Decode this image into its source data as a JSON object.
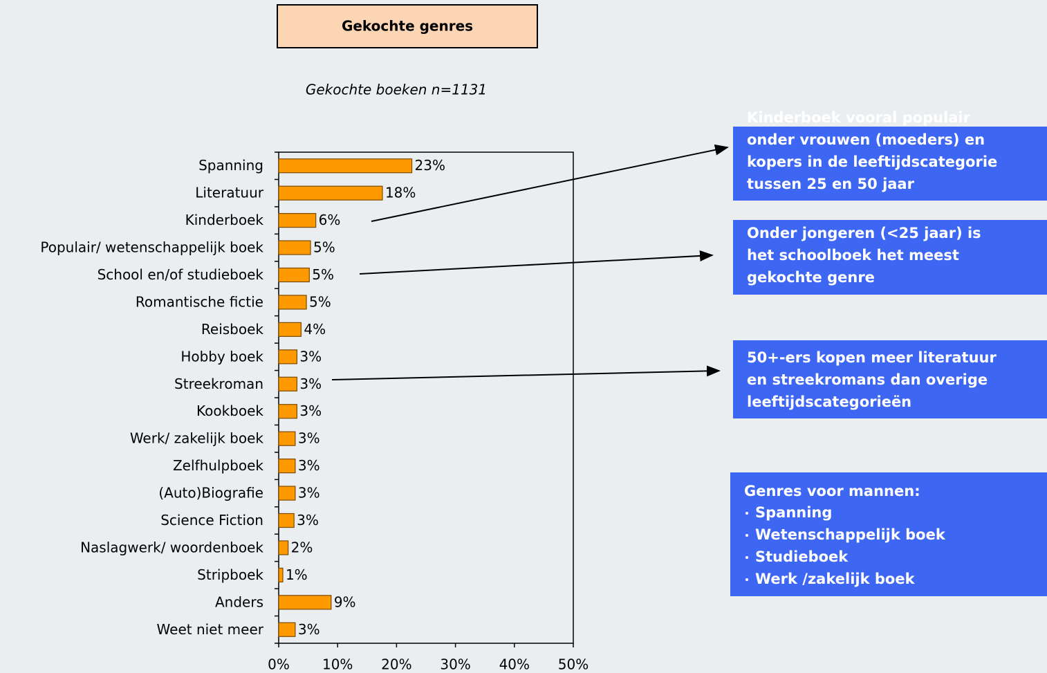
{
  "chart_data": {
    "type": "bar",
    "orientation": "horizontal",
    "title": "Gekochte genres",
    "subtitle": "Gekochte boeken n=1131",
    "categories": [
      "Spanning",
      "Literatuur",
      "Kinderboek",
      "Populair/ wetenschappelijk boek",
      "School en/of studieboek",
      "Romantische fictie",
      "Reisboek",
      "Hobby boek",
      "Streekroman",
      "Kookboek",
      "Werk/ zakelijk boek",
      "Zelfhulpboek",
      "(Auto)Biografie",
      "Science Fiction",
      "Naslagwerk/ woordenboek",
      "Stripboek",
      "Anders",
      "Weet niet meer"
    ],
    "values": [
      22.6,
      17.6,
      6.3,
      5.4,
      5.2,
      4.7,
      3.8,
      3.1,
      3.1,
      3.1,
      2.8,
      2.8,
      2.8,
      2.6,
      1.6,
      0.7,
      8.9,
      2.8
    ],
    "value_labels": [
      "23%",
      "18%",
      "6%",
      "5%",
      "5%",
      "5%",
      "4%",
      "3%",
      "3%",
      "3%",
      "3%",
      "3%",
      "3%",
      "3%",
      "2%",
      "1%",
      "9%",
      "3%"
    ],
    "color": "#ff9900",
    "xlim": [
      0,
      50
    ],
    "xticks": [
      {
        "value": 0,
        "label": "0%"
      },
      {
        "value": 10,
        "label": "10%"
      },
      {
        "value": 20,
        "label": "20%"
      },
      {
        "value": 30,
        "label": "30%"
      },
      {
        "value": 40,
        "label": "40%"
      },
      {
        "value": 50,
        "label": "50%"
      }
    ]
  },
  "callouts": [
    {
      "lines": [
        "Kinderboek vooral populair",
        "onder vrouwen (moeders) en",
        "kopers in de leeftijdscategorie",
        "tussen 25 en 50 jaar"
      ]
    },
    {
      "lines": [
        "Onder jongeren (<25 jaar) is",
        "het schoolboek het meest",
        "gekochte genre"
      ]
    },
    {
      "lines": [
        "50+-ers kopen meer literatuur",
        "en streekromans dan overige",
        "leeftijdscategorieën"
      ]
    },
    {
      "heading": "Genres voor mannen:",
      "items": [
        "Spanning",
        "Wetenschappelijk boek",
        "Studieboek",
        "Werk /zakelijk boek"
      ]
    }
  ]
}
